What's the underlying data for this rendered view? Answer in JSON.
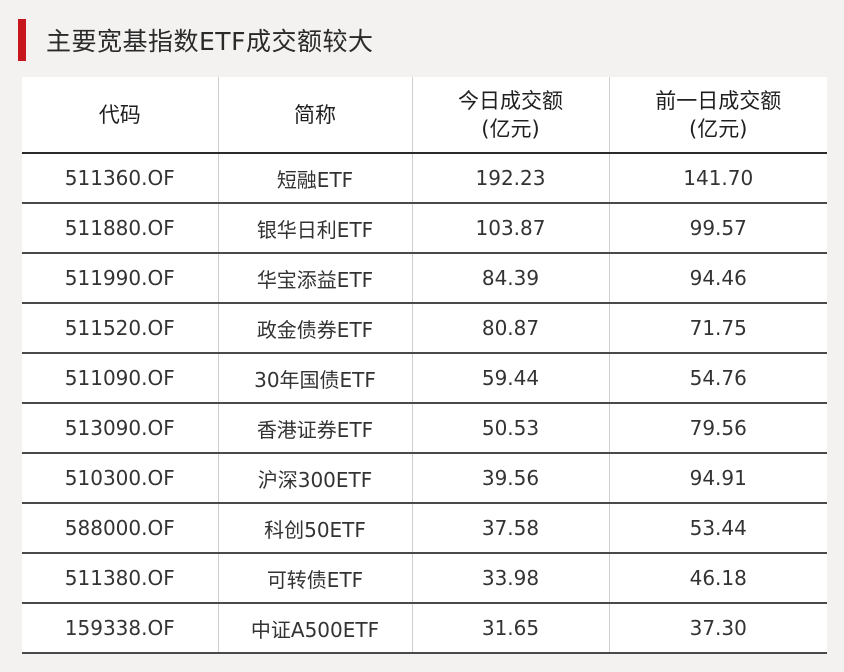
{
  "title": "主要宽基指数ETF成交额较大",
  "accent_color": "#c8161d",
  "headers": {
    "code": "代码",
    "name": "简称",
    "today_line1": "今日成交额",
    "today_line2": "(亿元)",
    "prev_line1": "前一日成交额",
    "prev_line2": "(亿元)"
  },
  "rows": [
    {
      "code": "511360.OF",
      "name": "短融ETF",
      "today": "192.23",
      "prev": "141.70"
    },
    {
      "code": "511880.OF",
      "name": "银华日利ETF",
      "today": "103.87",
      "prev": "99.57"
    },
    {
      "code": "511990.OF",
      "name": "华宝添益ETF",
      "today": "84.39",
      "prev": "94.46"
    },
    {
      "code": "511520.OF",
      "name": "政金债券ETF",
      "today": "80.87",
      "prev": "71.75"
    },
    {
      "code": "511090.OF",
      "name": "30年国债ETF",
      "today": "59.44",
      "prev": "54.76"
    },
    {
      "code": "513090.OF",
      "name": "香港证券ETF",
      "today": "50.53",
      "prev": "79.56"
    },
    {
      "code": "510300.OF",
      "name": "沪深300ETF",
      "today": "39.56",
      "prev": "94.91"
    },
    {
      "code": "588000.OF",
      "name": "科创50ETF",
      "today": "37.58",
      "prev": "53.44"
    },
    {
      "code": "511380.OF",
      "name": "可转债ETF",
      "today": "33.98",
      "prev": "46.18"
    },
    {
      "code": "159338.OF",
      "name": "中证A500ETF",
      "today": "31.65",
      "prev": "37.30"
    }
  ]
}
